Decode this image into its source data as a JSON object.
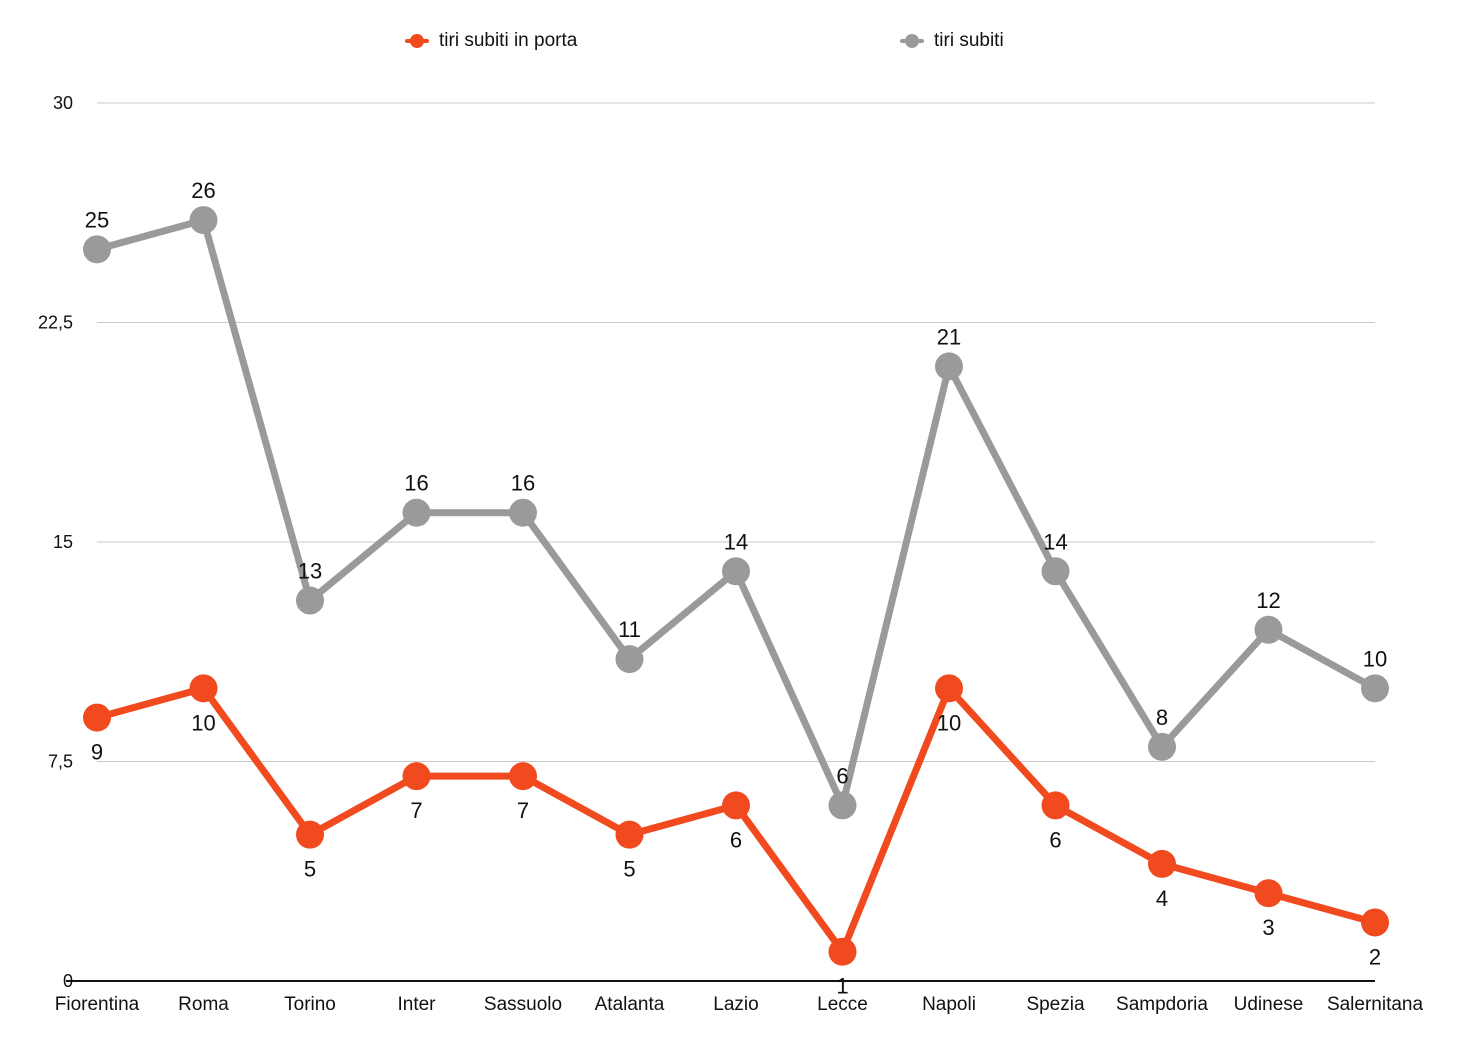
{
  "chart_data": {
    "type": "line",
    "categories": [
      "Fiorentina",
      "Roma",
      "Torino",
      "Inter",
      "Sassuolo",
      "Atalanta",
      "Lazio",
      "Lecce",
      "Napoli",
      "Spezia",
      "Sampdoria",
      "Udinese",
      "Salernitana"
    ],
    "series": [
      {
        "name": "tiri subiti in porta",
        "color": "#f24a1f",
        "values": [
          9,
          10,
          5,
          7,
          7,
          5,
          6,
          1,
          10,
          6,
          4,
          3,
          2
        ],
        "label_position": "below"
      },
      {
        "name": "tiri subiti",
        "color": "#9a9a9a",
        "values": [
          25,
          26,
          13,
          16,
          16,
          11,
          14,
          6,
          21,
          14,
          8,
          12,
          10
        ],
        "label_position": "above"
      }
    ],
    "y_ticks": [
      "0",
      "7,5",
      "15",
      "22,5",
      "30"
    ],
    "ylim": [
      0,
      30
    ],
    "grid": true,
    "legend_position": "top"
  }
}
